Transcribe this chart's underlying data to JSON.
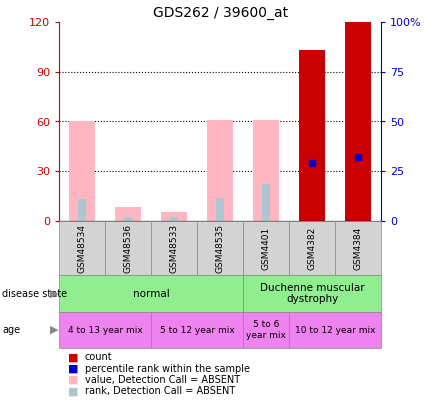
{
  "title": "GDS262 / 39600_at",
  "samples": [
    "GSM48534",
    "GSM48536",
    "GSM48533",
    "GSM48535",
    "GSM4401",
    "GSM4382",
    "GSM4384"
  ],
  "pink_bar_heights": [
    60,
    8,
    5,
    61,
    61,
    0,
    0
  ],
  "light_blue_bar_heights": [
    13,
    2,
    2,
    14,
    22,
    0,
    0
  ],
  "red_bar_heights": [
    0,
    0,
    0,
    0,
    0,
    103,
    120
  ],
  "blue_square_heights_right": [
    0,
    0,
    0,
    0,
    0,
    29,
    32
  ],
  "ylim_left": [
    0,
    120
  ],
  "ylim_right": [
    0,
    100
  ],
  "yticks_left": [
    0,
    30,
    60,
    90,
    120
  ],
  "ytick_labels_left": [
    "0",
    "30",
    "60",
    "90",
    "120"
  ],
  "yticks_right": [
    0,
    25,
    50,
    75,
    100
  ],
  "ytick_labels_right": [
    "0",
    "25",
    "50",
    "75",
    "100%"
  ],
  "left_axis_color": "#cc0000",
  "right_axis_color": "#0000cc",
  "pink_bar_color": "#ffb6c1",
  "light_blue_bar_color": "#aec6cf",
  "red_bar_color": "#cc0000",
  "blue_square_color": "#0000cc",
  "sample_box_color": "#d3d3d3",
  "ds_groups": [
    {
      "label": "normal",
      "start": 0,
      "end": 4,
      "color": "#90ee90"
    },
    {
      "label": "Duchenne muscular\ndystrophy",
      "start": 4,
      "end": 7,
      "color": "#90ee90"
    }
  ],
  "age_groups": [
    {
      "label": "4 to 13 year mix",
      "start": 0,
      "end": 2,
      "color": "#ee82ee"
    },
    {
      "label": "5 to 12 year mix",
      "start": 2,
      "end": 4,
      "color": "#ee82ee"
    },
    {
      "label": "5 to 6\nyear mix",
      "start": 4,
      "end": 5,
      "color": "#ee82ee"
    },
    {
      "label": "10 to 12 year mix",
      "start": 5,
      "end": 7,
      "color": "#ee82ee"
    }
  ],
  "legend_labels": [
    "count",
    "percentile rank within the sample",
    "value, Detection Call = ABSENT",
    "rank, Detection Call = ABSENT"
  ],
  "legend_colors": [
    "#cc0000",
    "#0000cc",
    "#ffb6c1",
    "#aec6cf"
  ],
  "bar_width": 0.55,
  "blue_bar_width": 0.18
}
